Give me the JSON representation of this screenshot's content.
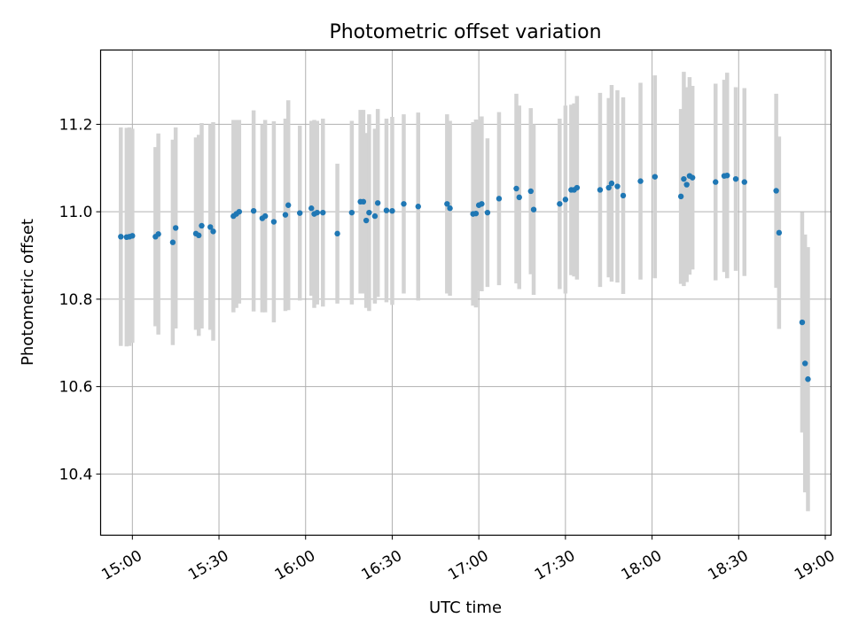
{
  "chart_data": {
    "type": "scatter",
    "title": "Photometric offset variation",
    "xlabel": "UTC time",
    "ylabel": "Photometric offset",
    "grid": true,
    "x_ticks": [
      "15:00",
      "15:30",
      "16:00",
      "16:30",
      "17:00",
      "17:30",
      "18:00",
      "18:30",
      "19:00"
    ],
    "x_range": [
      "14:49",
      "19:02"
    ],
    "y_ticks": [
      10.4,
      10.6,
      10.8,
      11.0,
      11.2
    ],
    "ylim": [
      10.26,
      11.37
    ],
    "colors": {
      "points": "#1f77b4",
      "errorbars": "#d3d3d3",
      "grid": "#b0b0b0"
    },
    "series": [
      {
        "points": [
          {
            "x": "14:56",
            "y": 10.943,
            "err": 0.25
          },
          {
            "x": "14:58",
            "y": 10.942,
            "err": 0.25
          },
          {
            "x": "14:59",
            "y": 10.943,
            "err": 0.25
          },
          {
            "x": "15:00",
            "y": 10.945,
            "err": 0.245
          },
          {
            "x": "15:08",
            "y": 10.943,
            "err": 0.205
          },
          {
            "x": "15:09",
            "y": 10.949,
            "err": 0.23
          },
          {
            "x": "15:14",
            "y": 10.93,
            "err": 0.235
          },
          {
            "x": "15:15",
            "y": 10.963,
            "err": 0.23
          },
          {
            "x": "15:22",
            "y": 10.95,
            "err": 0.22
          },
          {
            "x": "15:23",
            "y": 10.946,
            "err": 0.23
          },
          {
            "x": "15:24",
            "y": 10.968,
            "err": 0.235
          },
          {
            "x": "15:27",
            "y": 10.965,
            "err": 0.235
          },
          {
            "x": "15:28",
            "y": 10.955,
            "err": 0.25
          },
          {
            "x": "15:35",
            "y": 10.99,
            "err": 0.22
          },
          {
            "x": "15:36",
            "y": 10.995,
            "err": 0.215
          },
          {
            "x": "15:37",
            "y": 11.0,
            "err": 0.21
          },
          {
            "x": "15:42",
            "y": 11.002,
            "err": 0.23
          },
          {
            "x": "15:45",
            "y": 10.985,
            "err": 0.215
          },
          {
            "x": "15:46",
            "y": 10.99,
            "err": 0.22
          },
          {
            "x": "15:49",
            "y": 10.977,
            "err": 0.23
          },
          {
            "x": "15:53",
            "y": 10.993,
            "err": 0.22
          },
          {
            "x": "15:54",
            "y": 11.015,
            "err": 0.24
          },
          {
            "x": "15:58",
            "y": 10.997,
            "err": 0.2
          },
          {
            "x": "16:02",
            "y": 11.008,
            "err": 0.2
          },
          {
            "x": "16:03",
            "y": 10.995,
            "err": 0.215
          },
          {
            "x": "16:04",
            "y": 10.998,
            "err": 0.21
          },
          {
            "x": "16:06",
            "y": 10.998,
            "err": 0.215
          },
          {
            "x": "16:11",
            "y": 10.95,
            "err": 0.16
          },
          {
            "x": "16:16",
            "y": 10.998,
            "err": 0.21
          },
          {
            "x": "16:19",
            "y": 11.023,
            "err": 0.21
          },
          {
            "x": "16:20",
            "y": 11.023,
            "err": 0.21
          },
          {
            "x": "16:21",
            "y": 10.98,
            "err": 0.2
          },
          {
            "x": "16:22",
            "y": 10.998,
            "err": 0.225
          },
          {
            "x": "16:24",
            "y": 10.99,
            "err": 0.2
          },
          {
            "x": "16:25",
            "y": 11.02,
            "err": 0.215
          },
          {
            "x": "16:28",
            "y": 11.003,
            "err": 0.21
          },
          {
            "x": "16:30",
            "y": 11.002,
            "err": 0.215
          },
          {
            "x": "16:34",
            "y": 11.018,
            "err": 0.205
          },
          {
            "x": "16:39",
            "y": 11.012,
            "err": 0.215
          },
          {
            "x": "16:49",
            "y": 11.018,
            "err": 0.205
          },
          {
            "x": "16:50",
            "y": 11.008,
            "err": 0.2
          },
          {
            "x": "16:58",
            "y": 10.995,
            "err": 0.21
          },
          {
            "x": "16:59",
            "y": 10.996,
            "err": 0.215
          },
          {
            "x": "17:00",
            "y": 11.015,
            "err": 0.195
          },
          {
            "x": "17:01",
            "y": 11.018,
            "err": 0.2
          },
          {
            "x": "17:03",
            "y": 10.998,
            "err": 0.17
          },
          {
            "x": "17:07",
            "y": 11.03,
            "err": 0.198
          },
          {
            "x": "17:13",
            "y": 11.053,
            "err": 0.217
          },
          {
            "x": "17:14",
            "y": 11.033,
            "err": 0.21
          },
          {
            "x": "17:18",
            "y": 11.047,
            "err": 0.19
          },
          {
            "x": "17:19",
            "y": 11.005,
            "err": 0.195
          },
          {
            "x": "17:28",
            "y": 11.018,
            "err": 0.195
          },
          {
            "x": "17:30",
            "y": 11.028,
            "err": 0.215
          },
          {
            "x": "17:32",
            "y": 11.05,
            "err": 0.195
          },
          {
            "x": "17:33",
            "y": 11.05,
            "err": 0.198
          },
          {
            "x": "17:34",
            "y": 11.055,
            "err": 0.21
          },
          {
            "x": "17:42",
            "y": 11.05,
            "err": 0.222
          },
          {
            "x": "17:45",
            "y": 11.055,
            "err": 0.205
          },
          {
            "x": "17:46",
            "y": 11.065,
            "err": 0.225
          },
          {
            "x": "17:48",
            "y": 11.058,
            "err": 0.22
          },
          {
            "x": "17:50",
            "y": 11.037,
            "err": 0.225
          },
          {
            "x": "17:56",
            "y": 11.07,
            "err": 0.225
          },
          {
            "x": "18:01",
            "y": 11.08,
            "err": 0.232
          },
          {
            "x": "18:10",
            "y": 11.035,
            "err": 0.2
          },
          {
            "x": "18:11",
            "y": 11.075,
            "err": 0.245
          },
          {
            "x": "18:12",
            "y": 11.062,
            "err": 0.223
          },
          {
            "x": "18:13",
            "y": 11.082,
            "err": 0.226
          },
          {
            "x": "18:14",
            "y": 11.078,
            "err": 0.21
          },
          {
            "x": "18:22",
            "y": 11.068,
            "err": 0.225
          },
          {
            "x": "18:25",
            "y": 11.082,
            "err": 0.22
          },
          {
            "x": "18:26",
            "y": 11.083,
            "err": 0.235
          },
          {
            "x": "18:29",
            "y": 11.075,
            "err": 0.21
          },
          {
            "x": "18:32",
            "y": 11.068,
            "err": 0.215
          },
          {
            "x": "18:43",
            "y": 11.048,
            "err": 0.222
          },
          {
            "x": "18:44",
            "y": 10.952,
            "err": 0.22
          },
          {
            "x": "18:52",
            "y": 10.747,
            "err": 0.252
          },
          {
            "x": "18:53",
            "y": 10.653,
            "err": 0.295
          },
          {
            "x": "18:54",
            "y": 10.617,
            "err": 0.302
          }
        ]
      }
    ]
  }
}
